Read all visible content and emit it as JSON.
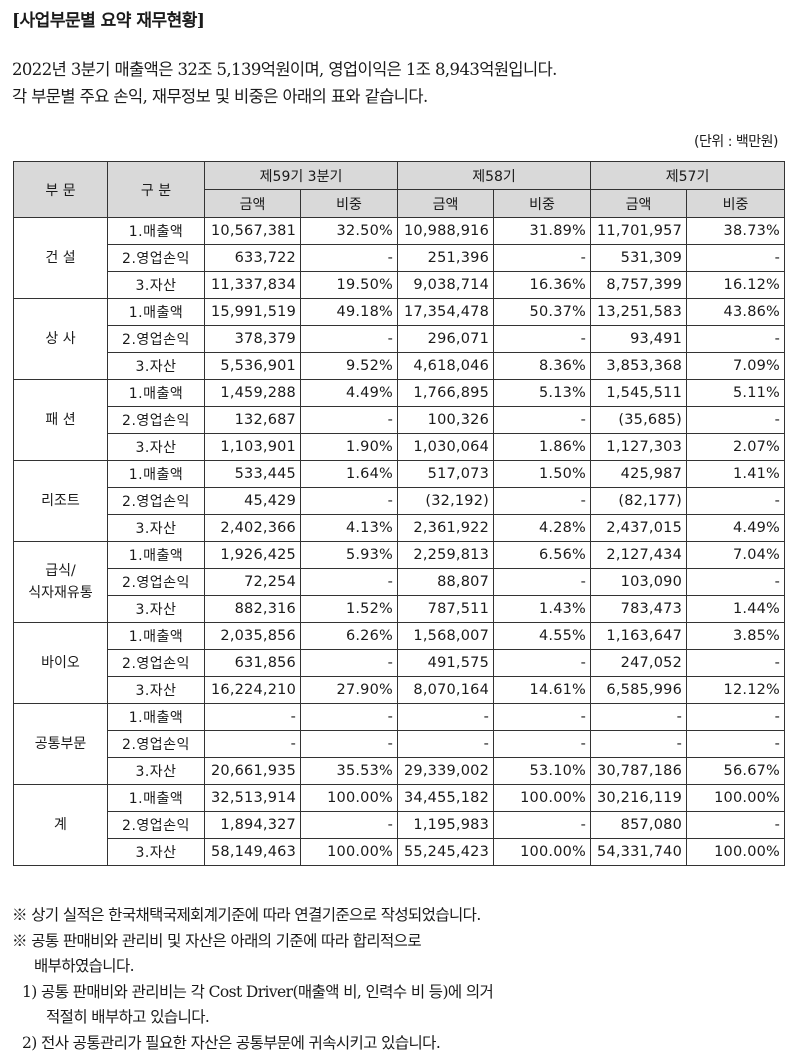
{
  "title": "[사업부문별 요약 재무현황]",
  "intro": {
    "line1": "2022년 3분기 매출액은 32조 5,139억원이며, 영업이익은 1조 8,943억원입니다.",
    "line2": "각 부문별 주요 손익, 재무정보 및 비중은 아래의 표와 같습니다."
  },
  "unit": "(단위 : 백만원)",
  "table": {
    "headers": {
      "segment": "부 문",
      "category": "구 분",
      "periods": [
        "제59기 3분기",
        "제58기",
        "제57기"
      ],
      "amount": "금액",
      "ratio": "비중"
    },
    "segments": [
      {
        "name": "건 설",
        "rows": [
          {
            "cat": "1.매출액",
            "v": [
              "10,567,381",
              "32.50%",
              "10,988,916",
              "31.89%",
              "11,701,957",
              "38.73%"
            ]
          },
          {
            "cat": "2.영업손익",
            "v": [
              "633,722",
              "-",
              "251,396",
              "-",
              "531,309",
              "-"
            ]
          },
          {
            "cat": "3.자산",
            "v": [
              "11,337,834",
              "19.50%",
              "9,038,714",
              "16.36%",
              "8,757,399",
              "16.12%"
            ]
          }
        ]
      },
      {
        "name": "상 사",
        "rows": [
          {
            "cat": "1.매출액",
            "v": [
              "15,991,519",
              "49.18%",
              "17,354,478",
              "50.37%",
              "13,251,583",
              "43.86%"
            ]
          },
          {
            "cat": "2.영업손익",
            "v": [
              "378,379",
              "-",
              "296,071",
              "-",
              "93,491",
              "-"
            ]
          },
          {
            "cat": "3.자산",
            "v": [
              "5,536,901",
              "9.52%",
              "4,618,046",
              "8.36%",
              "3,853,368",
              "7.09%"
            ]
          }
        ]
      },
      {
        "name": "패 션",
        "rows": [
          {
            "cat": "1.매출액",
            "v": [
              "1,459,288",
              "4.49%",
              "1,766,895",
              "5.13%",
              "1,545,511",
              "5.11%"
            ]
          },
          {
            "cat": "2.영업손익",
            "v": [
              "132,687",
              "-",
              "100,326",
              "-",
              "(35,685)",
              "-"
            ]
          },
          {
            "cat": "3.자산",
            "v": [
              "1,103,901",
              "1.90%",
              "1,030,064",
              "1.86%",
              "1,127,303",
              "2.07%"
            ]
          }
        ]
      },
      {
        "name": "리조트",
        "rows": [
          {
            "cat": "1.매출액",
            "v": [
              "533,445",
              "1.64%",
              "517,073",
              "1.50%",
              "425,987",
              "1.41%"
            ]
          },
          {
            "cat": "2.영업손익",
            "v": [
              "45,429",
              "-",
              "(32,192)",
              "-",
              "(82,177)",
              "-"
            ]
          },
          {
            "cat": "3.자산",
            "v": [
              "2,402,366",
              "4.13%",
              "2,361,922",
              "4.28%",
              "2,437,015",
              "4.49%"
            ]
          }
        ]
      },
      {
        "name": "급식/",
        "name2": "식자재유통",
        "rows": [
          {
            "cat": "1.매출액",
            "v": [
              "1,926,425",
              "5.93%",
              "2,259,813",
              "6.56%",
              "2,127,434",
              "7.04%"
            ]
          },
          {
            "cat": "2.영업손익",
            "v": [
              "72,254",
              "-",
              "88,807",
              "-",
              "103,090",
              "-"
            ]
          },
          {
            "cat": "3.자산",
            "v": [
              "882,316",
              "1.52%",
              "787,511",
              "1.43%",
              "783,473",
              "1.44%"
            ]
          }
        ]
      },
      {
        "name": "바이오",
        "rows": [
          {
            "cat": "1.매출액",
            "v": [
              "2,035,856",
              "6.26%",
              "1,568,007",
              "4.55%",
              "1,163,647",
              "3.85%"
            ]
          },
          {
            "cat": "2.영업손익",
            "v": [
              "631,856",
              "-",
              "491,575",
              "-",
              "247,052",
              "-"
            ]
          },
          {
            "cat": "3.자산",
            "v": [
              "16,224,210",
              "27.90%",
              "8,070,164",
              "14.61%",
              "6,585,996",
              "12.12%"
            ]
          }
        ]
      },
      {
        "name": "공통부문",
        "rows": [
          {
            "cat": "1.매출액",
            "v": [
              "-",
              "-",
              "-",
              "-",
              "-",
              "-"
            ]
          },
          {
            "cat": "2.영업손익",
            "v": [
              "-",
              "-",
              "-",
              "-",
              "-",
              "-"
            ]
          },
          {
            "cat": "3.자산",
            "v": [
              "20,661,935",
              "35.53%",
              "29,339,002",
              "53.10%",
              "30,787,186",
              "56.67%"
            ]
          }
        ]
      },
      {
        "name": "계",
        "rows": [
          {
            "cat": "1.매출액",
            "v": [
              "32,513,914",
              "100.00%",
              "34,455,182",
              "100.00%",
              "30,216,119",
              "100.00%"
            ]
          },
          {
            "cat": "2.영업손익",
            "v": [
              "1,894,327",
              "-",
              "1,195,983",
              "-",
              "857,080",
              "-"
            ]
          },
          {
            "cat": "3.자산",
            "v": [
              "58,149,463",
              "100.00%",
              "55,245,423",
              "100.00%",
              "54,331,740",
              "100.00%"
            ]
          }
        ]
      }
    ]
  },
  "notes": {
    "n1": "※ 상기 실적은 한국채택국제회계기준에 따라 연결기준으로 작성되었습니다.",
    "n2": "※ 공통 판매비와 관리비 및 자산은 아래의 기준에 따라 합리적으로",
    "n2b": "배부하였습니다.",
    "n3": "1) 공통 판매비와 관리비는 각 Cost Driver(매출액 비, 인력수 비 등)에 의거",
    "n3b": "적절히 배부하고 있습니다.",
    "n4": "2) 전사 공통관리가 필요한 자산은 공통부문에 귀속시키고 있습니다."
  }
}
